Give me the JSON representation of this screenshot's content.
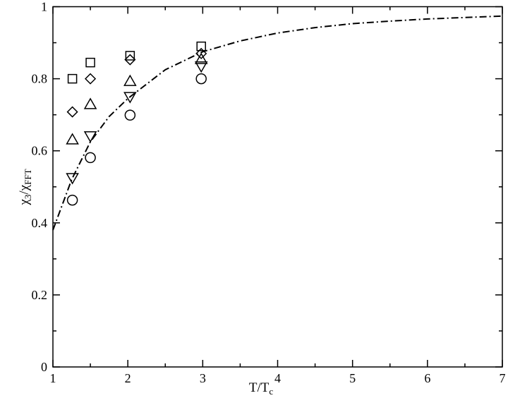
{
  "chart_data": {
    "type": "scatter",
    "title": "",
    "xlabel": {
      "main": "T/T",
      "sub": "c"
    },
    "ylabel": {
      "a": "χ",
      "a_sub": "3",
      "sep": "/χ",
      "b_sub": "FFT"
    },
    "xlim": [
      1,
      7
    ],
    "ylim": [
      0,
      1
    ],
    "xticks": [
      1,
      2,
      3,
      4,
      5,
      6,
      7
    ],
    "yticks": [
      0,
      0.2,
      0.4,
      0.6,
      0.8,
      1
    ],
    "ytick_labels": [
      "0",
      "0.2",
      "0.4",
      "0.6",
      "0.8",
      "1"
    ],
    "grid": false,
    "series": [
      {
        "marker": "square",
        "x": [
          1.26,
          1.5,
          2.03,
          2.98
        ],
        "y": [
          0.8,
          0.845,
          0.864,
          0.89
        ]
      },
      {
        "marker": "diamond",
        "x": [
          1.26,
          1.5,
          2.03,
          2.98
        ],
        "y": [
          0.708,
          0.8,
          0.853,
          0.87
        ]
      },
      {
        "marker": "triangle-up",
        "x": [
          1.26,
          1.5,
          2.03,
          2.98
        ],
        "y": [
          0.631,
          0.729,
          0.793,
          0.854
        ]
      },
      {
        "marker": "triangle-down",
        "x": [
          1.26,
          1.5,
          2.03,
          2.98
        ],
        "y": [
          0.525,
          0.641,
          0.75,
          0.835
        ]
      },
      {
        "marker": "circle",
        "x": [
          1.26,
          1.5,
          2.03,
          2.98
        ],
        "y": [
          0.463,
          0.581,
          0.699,
          0.8
        ]
      }
    ],
    "curve": {
      "style": "dash-dot",
      "x": [
        1,
        1.25,
        1.5,
        1.75,
        2,
        2.5,
        3,
        3.5,
        4,
        4.5,
        5,
        5.5,
        6,
        6.5,
        7
      ],
      "y": [
        0.38,
        0.52,
        0.625,
        0.695,
        0.745,
        0.825,
        0.875,
        0.905,
        0.927,
        0.942,
        0.953,
        0.96,
        0.966,
        0.97,
        0.974
      ]
    }
  }
}
